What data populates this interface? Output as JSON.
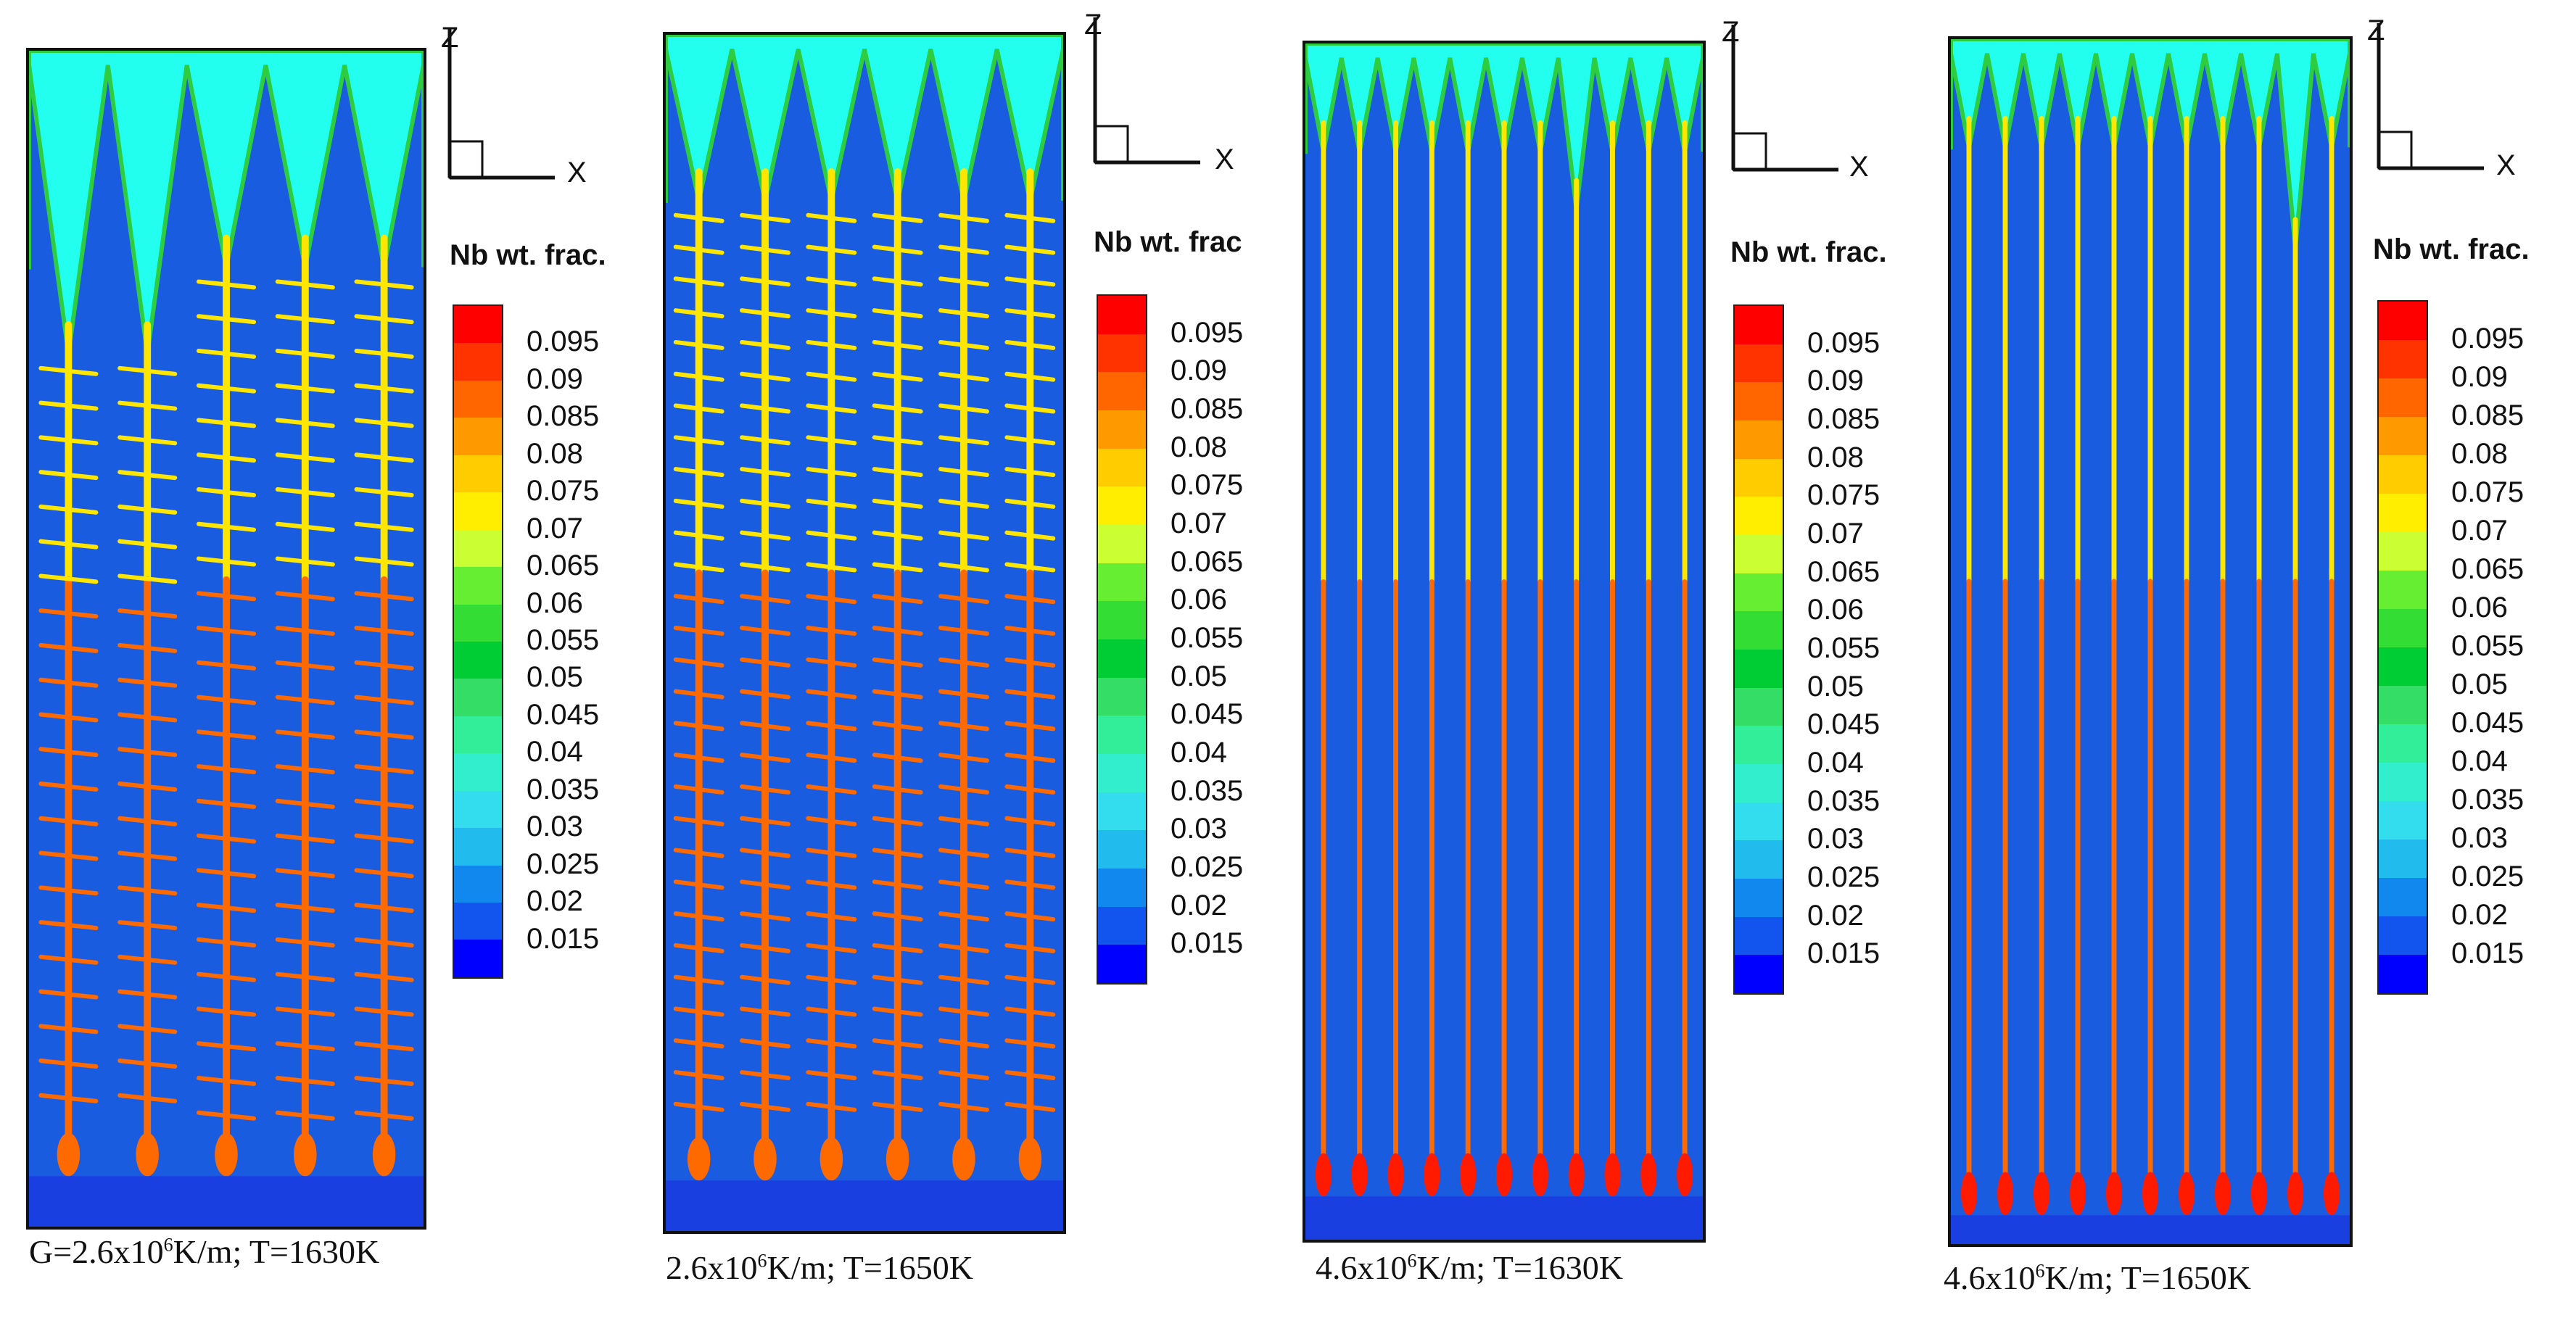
{
  "panels": [
    {
      "caption_prefix": "G=2.6x10",
      "caption_exp": "6",
      "caption_suffix": "K/m; T=1630K",
      "axis_z": "Z",
      "axis_x": "X",
      "legend_title": "Nb wt. frac."
    },
    {
      "caption_prefix": "2.6x10",
      "caption_exp": "6",
      "caption_suffix": "K/m; T=1650K",
      "axis_z": "Z",
      "axis_x": "X",
      "legend_title": "Nb wt. frac"
    },
    {
      "caption_prefix": "4.6x10",
      "caption_exp": "6",
      "caption_suffix": "K/m; T=1630K",
      "axis_z": "Z",
      "axis_x": "X",
      "legend_title": "Nb wt. frac."
    },
    {
      "caption_prefix": "4.6x10",
      "caption_exp": "6",
      "caption_suffix": "K/m; T=1650K",
      "axis_z": "Z",
      "axis_x": "X",
      "legend_title": "Nb wt. frac."
    }
  ],
  "legend_levels": [
    "0.095",
    "0.09",
    "0.085",
    "0.08",
    "0.075",
    "0.07",
    "0.065",
    "0.06",
    "0.055",
    "0.05",
    "0.045",
    "0.04",
    "0.035",
    "0.03",
    "0.025",
    "0.02",
    "0.015"
  ],
  "legend_colors": [
    "#ff0000",
    "#ff3300",
    "#ff6600",
    "#ff9900",
    "#ffcc00",
    "#ffee00",
    "#ccff33",
    "#66ee33",
    "#33dd33",
    "#00cc33",
    "#33dd66",
    "#33ee99",
    "#33eecc",
    "#33ddee",
    "#22bbee",
    "#1188ee",
    "#1155ee",
    "#0000ff"
  ],
  "colors": {
    "liquid": "#22ffee",
    "solid": "#1a5ce0",
    "interdendritic": "#ffe600",
    "eutectic": "#ff6a00",
    "rich": "#ff1a00",
    "boundary": "#2ecc40"
  }
}
